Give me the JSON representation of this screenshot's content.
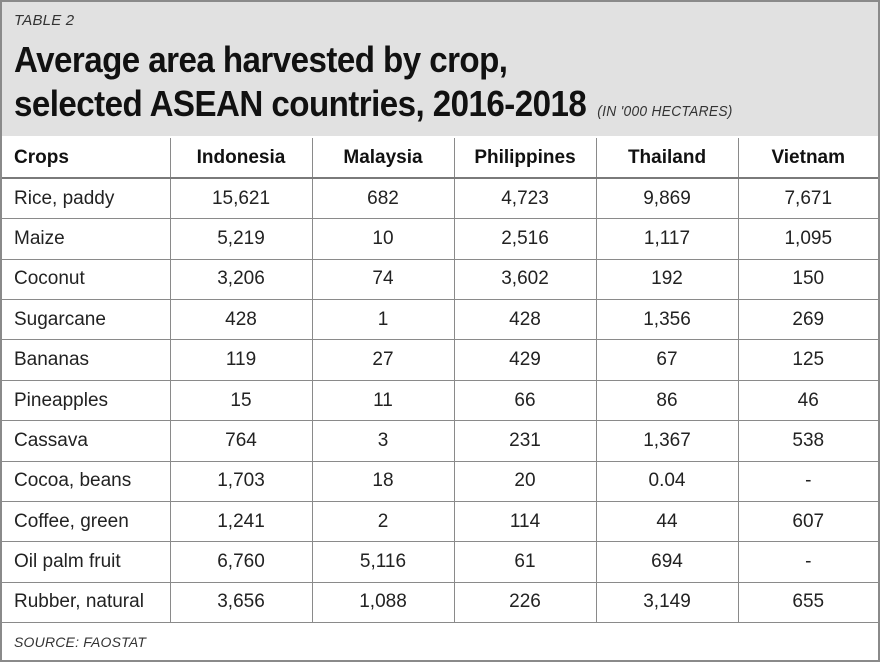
{
  "table_label": "TABLE 2",
  "title_line1": "Average area harvested by crop,",
  "title_line2": "selected ASEAN countries, 2016-2018",
  "units": "(IN '000 HECTARES)",
  "columns": [
    "Crops",
    "Indonesia",
    "Malaysia",
    "Philippines",
    "Thailand",
    "Vietnam"
  ],
  "rows": [
    [
      "Rice, paddy",
      "15,621",
      "682",
      "4,723",
      "9,869",
      "7,671"
    ],
    [
      "Maize",
      "5,219",
      "10",
      "2,516",
      "1,117",
      "1,095"
    ],
    [
      "Coconut",
      "3,206",
      "74",
      "3,602",
      "192",
      "150"
    ],
    [
      "Sugarcane",
      "428",
      "1",
      "428",
      "1,356",
      "269"
    ],
    [
      "Bananas",
      "119",
      "27",
      "429",
      "67",
      "125"
    ],
    [
      "Pineapples",
      "15",
      "11",
      "66",
      "86",
      "46"
    ],
    [
      "Cassava",
      "764",
      "3",
      "231",
      "1,367",
      "538"
    ],
    [
      "Cocoa, beans",
      "1,703",
      "18",
      "20",
      "0.04",
      "-"
    ],
    [
      "Coffee, green",
      "1,241",
      "2",
      "114",
      "44",
      "607"
    ],
    [
      "Oil palm fruit",
      "6,760",
      "5,116",
      "61",
      "694",
      "-"
    ],
    [
      "Rubber, natural",
      "3,656",
      "1,088",
      "226",
      "3,149",
      "655"
    ]
  ],
  "source": "SOURCE: FAOSTAT",
  "colors": {
    "header_bg": "#e1e1e1",
    "border": "#8a8a8a"
  }
}
